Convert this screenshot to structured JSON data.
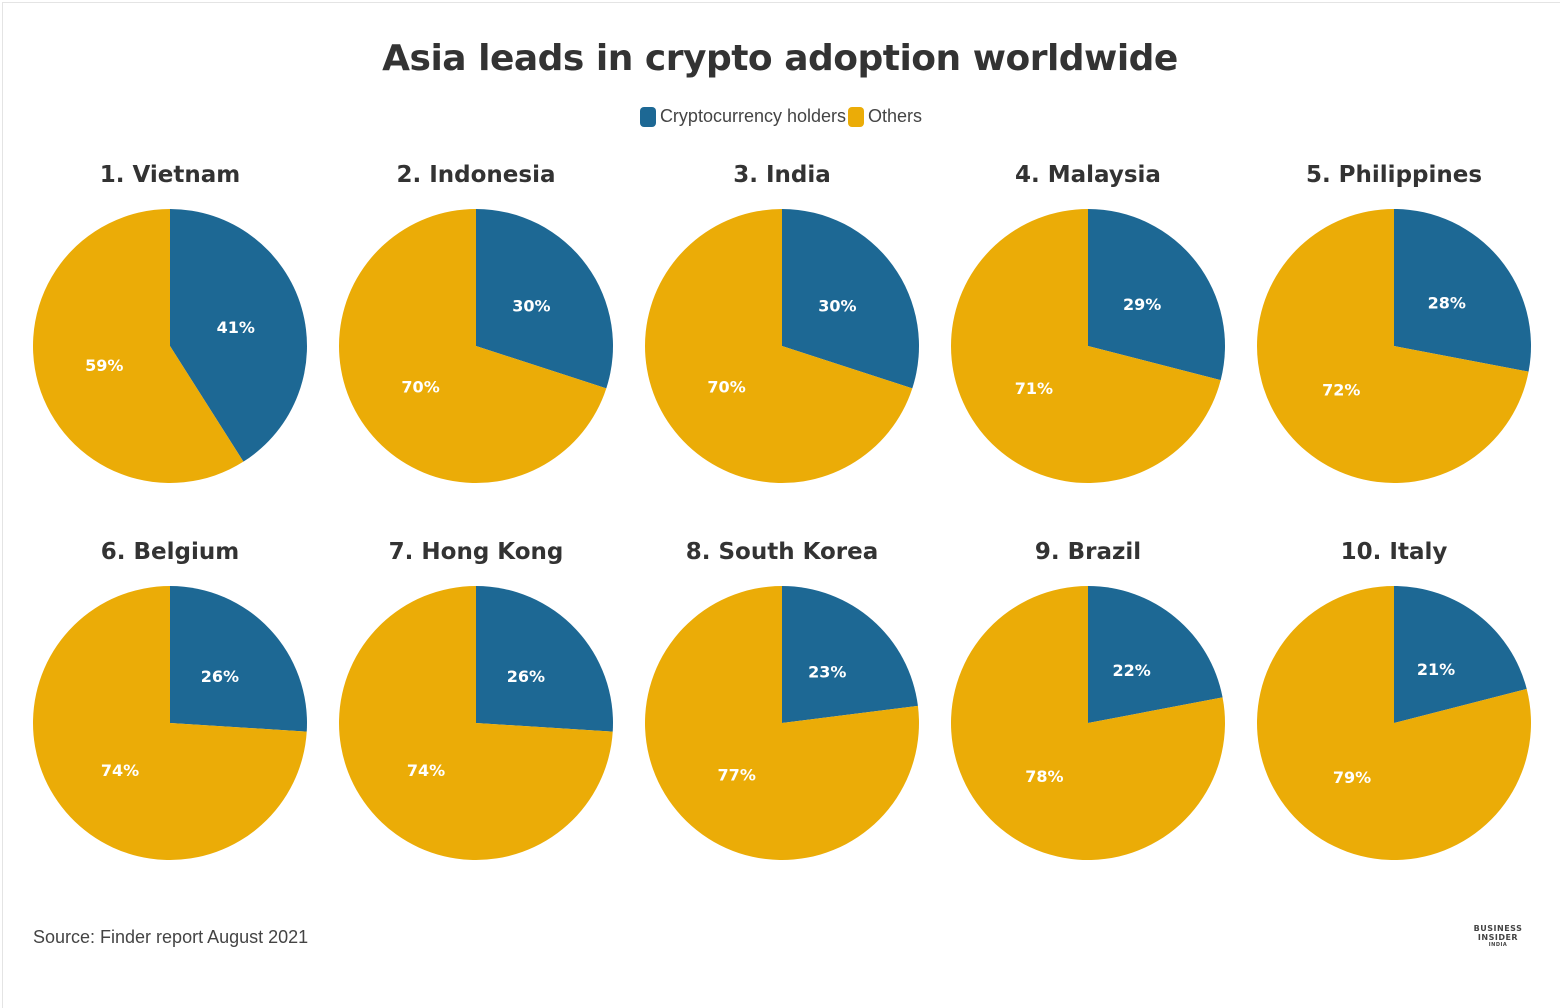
{
  "chart_data": {
    "type": "pie",
    "title": "Asia leads in crypto adoption worldwide",
    "legend": [
      {
        "name": "Cryptocurrency holders",
        "color": "#1d6894"
      },
      {
        "name": "Others",
        "color": "#ebac07"
      }
    ],
    "legend_placement": "top",
    "pies": [
      {
        "label": "1. Vietnam",
        "values": [
          41,
          59
        ],
        "labels": [
          "41%",
          "59%"
        ]
      },
      {
        "label": "2. Indonesia",
        "values": [
          30,
          70
        ],
        "labels": [
          "30%",
          "70%"
        ]
      },
      {
        "label": "3. India",
        "values": [
          30,
          70
        ],
        "labels": [
          "30%",
          "70%"
        ]
      },
      {
        "label": "4. Malaysia",
        "values": [
          29,
          71
        ],
        "labels": [
          "29%",
          "71%"
        ]
      },
      {
        "label": "5. Philippines",
        "values": [
          28,
          72
        ],
        "labels": [
          "28%",
          "72%"
        ]
      },
      {
        "label": "6. Belgium",
        "values": [
          26,
          74
        ],
        "labels": [
          "26%",
          "74%"
        ]
      },
      {
        "label": "7. Hong Kong",
        "values": [
          26,
          74
        ],
        "labels": [
          "26%",
          "74%"
        ]
      },
      {
        "label": "8. South Korea",
        "values": [
          23,
          77
        ],
        "labels": [
          "23%",
          "77%"
        ]
      },
      {
        "label": "9. Brazil",
        "values": [
          22,
          78
        ],
        "labels": [
          "22%",
          "78%"
        ]
      },
      {
        "label": "10. Italy",
        "values": [
          21,
          79
        ],
        "labels": [
          "21%",
          "79%"
        ]
      }
    ]
  },
  "footer": {
    "source": "Source: Finder report August 2021",
    "logo": [
      "BUSINESS",
      "INSIDER",
      "INDIA"
    ]
  }
}
